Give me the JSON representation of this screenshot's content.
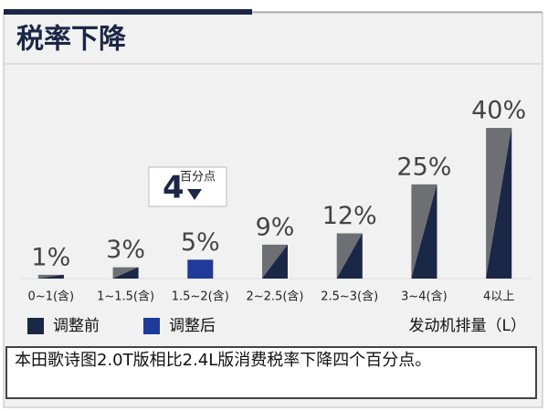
{
  "chart_data": {
    "type": "bar",
    "title": "税率下降",
    "categories": [
      "0~1(含)",
      "1~1.5(含)",
      "1.5~2(含)",
      "2~2.5(含)",
      "2.5~3(含)",
      "3~4(含)",
      "4以上"
    ],
    "series": [
      {
        "name": "调整前",
        "color": "#1b2747",
        "values": [
          1,
          3,
          null,
          9,
          12,
          25,
          40
        ],
        "value_labels": [
          "1%",
          "3%",
          null,
          "9%",
          "12%",
          "25%",
          "40%"
        ]
      },
      {
        "name": "调整后",
        "color": "#1f3a99",
        "values": [
          null,
          null,
          5,
          null,
          null,
          null,
          null
        ],
        "value_labels": [
          null,
          null,
          "5%",
          null,
          null,
          null,
          null
        ]
      }
    ],
    "ylim": [
      0,
      40
    ],
    "x_label": "发动机排量（L）",
    "annotation": {
      "text": "4",
      "unit": "百分点"
    },
    "caption": "本田歌诗图2.0T版相比2.4L版消费税率下降四个百分点。"
  }
}
